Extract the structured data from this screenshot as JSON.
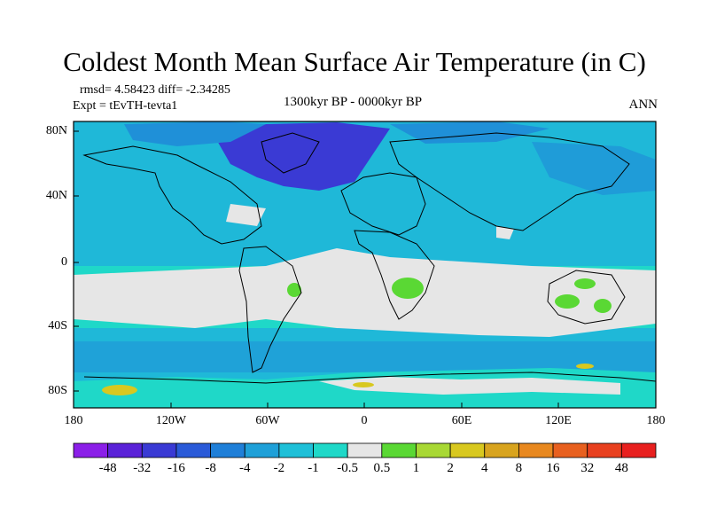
{
  "title": "Coldest Month Mean Surface Air Temperature (in C)",
  "stats": "rmsd= 4.58423 diff= -2.34285",
  "experiment": "Expt = tEvTH-tevta1",
  "period": "1300kyr BP - 0000kyr BP",
  "season": "ANN",
  "lat_ticks": [
    "80N",
    "40N",
    "0",
    "40S",
    "80S"
  ],
  "lon_ticks": [
    "180",
    "120W",
    "60W",
    "0",
    "60E",
    "120E",
    "180"
  ],
  "colorbar": {
    "labels": [
      "-48",
      "-32",
      "-16",
      "-8",
      "-4",
      "-2",
      "-1",
      "-0.5",
      "0.5",
      "1",
      "2",
      "4",
      "8",
      "16",
      "32",
      "48"
    ],
    "colors": [
      "#8b1fe8",
      "#5a22d8",
      "#3a3ad4",
      "#2a5ad8",
      "#1f7fd8",
      "#1fa0d8",
      "#1fc0d8",
      "#1fd8c8",
      "#e6e6e6",
      "#5ad834",
      "#a8d834",
      "#d8c81f",
      "#d8a41f",
      "#e8881f",
      "#e8601f",
      "#e8401f",
      "#e8201f"
    ]
  },
  "map_colors": {
    "ocean_base": "#1fb8d8",
    "weak": "#1fd8c8",
    "neutral": "#e6e6e6",
    "cool": "#1f90d8",
    "cold": "#3a5ad4",
    "colder": "#3a3ad4",
    "warm_green": "#5ad834",
    "warm_yellow": "#d8c81f"
  }
}
